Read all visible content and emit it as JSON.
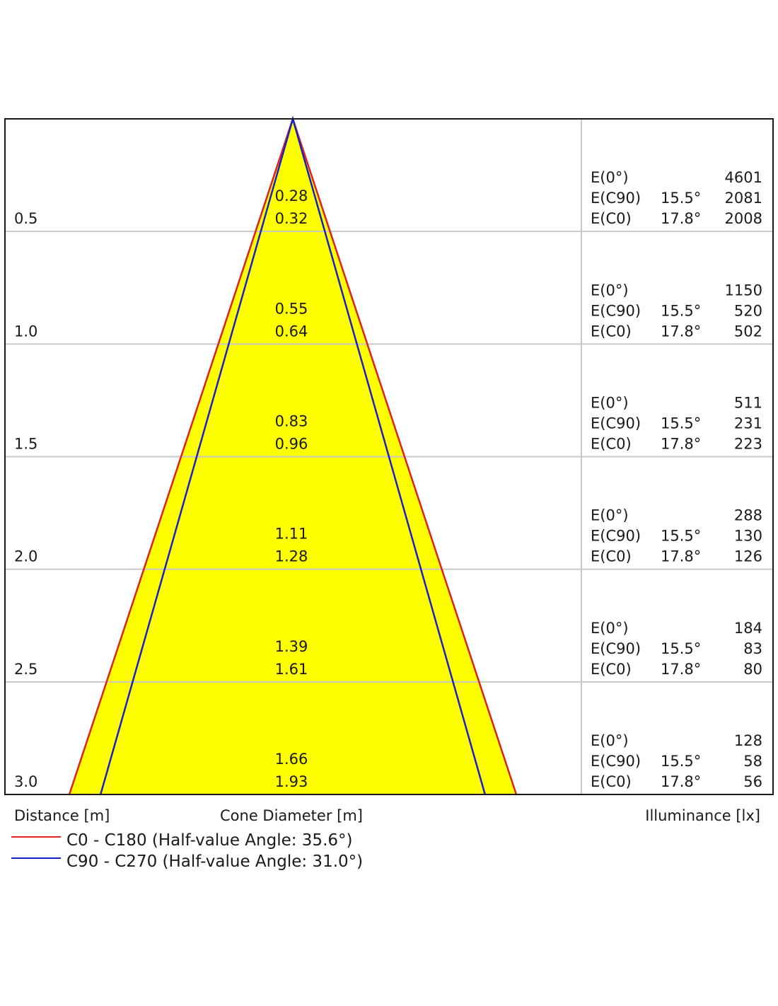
{
  "chart_data": {
    "type": "cone-diagram",
    "xlabel": "Distance [m]",
    "center_label": "Cone Diameter [m]",
    "right_label": "Illuminance [lx]",
    "distance_max": 3.0,
    "series": [
      {
        "name": "C0 - C180 (Half-value Angle: 35.6°)",
        "color": "#e02020",
        "half_value_angle": 35.6
      },
      {
        "name": "C90 - C270 (Half-value Angle: 31.0°)",
        "color": "#1a20c8",
        "half_value_angle": 31.0
      }
    ],
    "fill_color": "#ffff00",
    "rows": [
      {
        "distance": "0.5",
        "d": 0.5,
        "cone_c90": "0.28",
        "cone_c0": "0.32",
        "e0_label": "E(0°)",
        "e0": "4601",
        "ec90_label": "E(C90)",
        "ec90_angle": "15.5°",
        "ec90": "2081",
        "ec0_label": "E(C0)",
        "ec0_angle": "17.8°",
        "ec0": "2008"
      },
      {
        "distance": "1.0",
        "d": 1.0,
        "cone_c90": "0.55",
        "cone_c0": "0.64",
        "e0_label": "E(0°)",
        "e0": "1150",
        "ec90_label": "E(C90)",
        "ec90_angle": "15.5°",
        "ec90": "520",
        "ec0_label": "E(C0)",
        "ec0_angle": "17.8°",
        "ec0": "502"
      },
      {
        "distance": "1.5",
        "d": 1.5,
        "cone_c90": "0.83",
        "cone_c0": "0.96",
        "e0_label": "E(0°)",
        "e0": "511",
        "ec90_label": "E(C90)",
        "ec90_angle": "15.5°",
        "ec90": "231",
        "ec0_label": "E(C0)",
        "ec0_angle": "17.8°",
        "ec0": "223"
      },
      {
        "distance": "2.0",
        "d": 2.0,
        "cone_c90": "1.11",
        "cone_c0": "1.28",
        "e0_label": "E(0°)",
        "e0": "288",
        "ec90_label": "E(C90)",
        "ec90_angle": "15.5°",
        "ec90": "130",
        "ec0_label": "E(C0)",
        "ec0_angle": "17.8°",
        "ec0": "126"
      },
      {
        "distance": "2.5",
        "d": 2.5,
        "cone_c90": "1.39",
        "cone_c0": "1.61",
        "e0_label": "E(0°)",
        "e0": "184",
        "ec90_label": "E(C90)",
        "ec90_angle": "15.5°",
        "ec90": "83",
        "ec0_label": "E(C0)",
        "ec0_angle": "17.8°",
        "ec0": "80"
      },
      {
        "distance": "3.0",
        "d": 3.0,
        "cone_c90": "1.66",
        "cone_c0": "1.93",
        "e0_label": "E(0°)",
        "e0": "128",
        "ec90_label": "E(C90)",
        "ec90_angle": "15.5°",
        "ec90": "58",
        "ec0_label": "E(C0)",
        "ec0_angle": "17.8°",
        "ec0": "56"
      }
    ]
  }
}
